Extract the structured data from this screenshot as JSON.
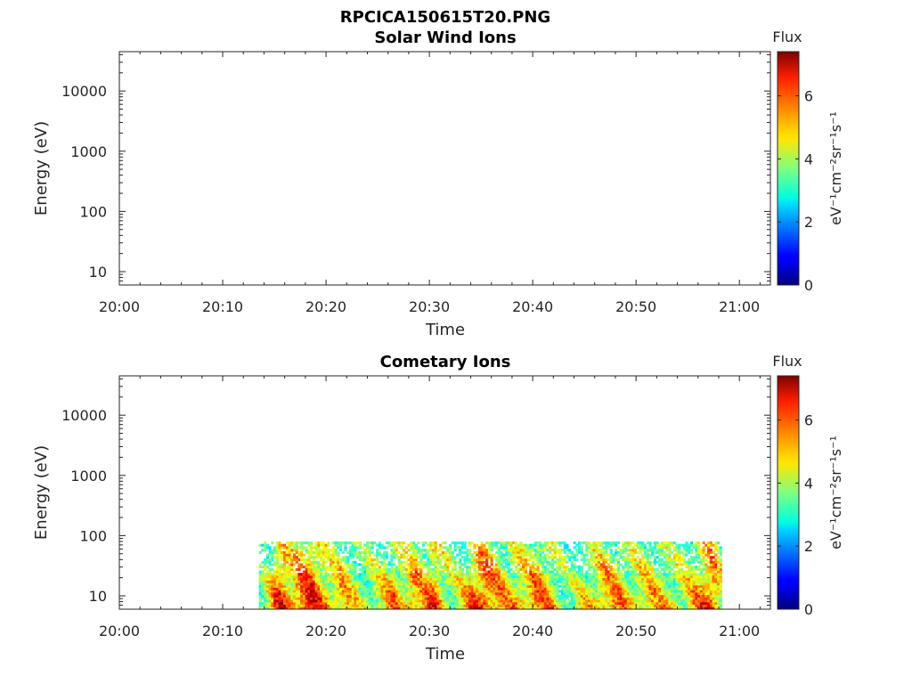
{
  "figure_title": "RPCICA150615T20.PNG",
  "chart_data": [
    {
      "type": "heatmap",
      "title": "Solar Wind Ions",
      "xlabel": "Time",
      "ylabel": "Energy (eV)",
      "x_ticks": [
        "20:00",
        "20:10",
        "20:20",
        "20:30",
        "20:40",
        "20:50",
        "21:00"
      ],
      "x_range_minutes": [
        0,
        63
      ],
      "y_scale": "log",
      "y_ticks": [
        10,
        100,
        1000,
        10000
      ],
      "y_tick_labels": [
        "10",
        "100",
        "1000",
        "10000"
      ],
      "ylim": [
        6,
        45000
      ],
      "colorbar": {
        "label": "Flux",
        "unit": "eV⁻¹cm⁻²sr⁻¹s⁻¹",
        "ticks": [
          "0",
          "2",
          "4",
          "6"
        ],
        "range": [
          0,
          7.4
        ],
        "colormap": "jet"
      },
      "data_coverage": "none",
      "data": []
    },
    {
      "type": "heatmap",
      "title": "Cometary Ions",
      "xlabel": "Time",
      "ylabel": "Energy (eV)",
      "x_ticks": [
        "20:00",
        "20:10",
        "20:20",
        "20:30",
        "20:40",
        "20:50",
        "21:00"
      ],
      "x_range_minutes": [
        0,
        63
      ],
      "y_scale": "log",
      "y_ticks": [
        10,
        100,
        1000,
        10000
      ],
      "y_tick_labels": [
        "10",
        "100",
        "1000",
        "10000"
      ],
      "ylim": [
        6,
        45000
      ],
      "colorbar": {
        "label": "Flux",
        "unit": "eV⁻¹cm⁻²sr⁻¹s⁻¹",
        "ticks": [
          "0",
          "2",
          "4",
          "6"
        ],
        "range": [
          0,
          7.4
        ],
        "colormap": "jet"
      },
      "data_coverage": {
        "time_start_min": 13.5,
        "time_end_min": 58.3,
        "energy_min_eV": 6,
        "energy_max_eV": 80
      },
      "intensity_profile": [
        [
          13.5,
          3.5
        ],
        [
          14.5,
          5.0
        ],
        [
          15.5,
          6.8
        ],
        [
          16.5,
          6.0
        ],
        [
          17.5,
          6.6
        ],
        [
          18.5,
          6.9
        ],
        [
          19.5,
          6.2
        ],
        [
          20.5,
          5.5
        ],
        [
          21.5,
          5.8
        ],
        [
          22.5,
          5.0
        ],
        [
          23.5,
          4.6
        ],
        [
          24.5,
          4.8
        ],
        [
          25.5,
          5.2
        ],
        [
          26.5,
          5.8
        ],
        [
          27.5,
          5.4
        ],
        [
          28.5,
          6.2
        ],
        [
          29.5,
          5.6
        ],
        [
          30.5,
          6.4
        ],
        [
          31.5,
          5.2
        ],
        [
          32.5,
          4.6
        ],
        [
          33.5,
          5.4
        ],
        [
          34.5,
          6.6
        ],
        [
          35.5,
          6.8
        ],
        [
          36.5,
          6.0
        ],
        [
          37.5,
          5.4
        ],
        [
          38.5,
          5.6
        ],
        [
          39.5,
          5.8
        ],
        [
          40.5,
          6.3
        ],
        [
          41.5,
          5.6
        ],
        [
          42.5,
          4.8
        ],
        [
          43.5,
          4.2
        ],
        [
          44.5,
          4.6
        ],
        [
          45.5,
          5.2
        ],
        [
          46.5,
          5.8
        ],
        [
          47.5,
          6.0
        ],
        [
          48.5,
          5.6
        ],
        [
          49.5,
          5.2
        ],
        [
          50.5,
          5.4
        ],
        [
          51.5,
          5.6
        ],
        [
          52.5,
          5.2
        ],
        [
          53.5,
          5.0
        ],
        [
          54.5,
          4.8
        ],
        [
          55.5,
          5.4
        ],
        [
          56.5,
          6.2
        ],
        [
          57.5,
          6.8
        ],
        [
          58.3,
          5.0
        ]
      ]
    }
  ]
}
